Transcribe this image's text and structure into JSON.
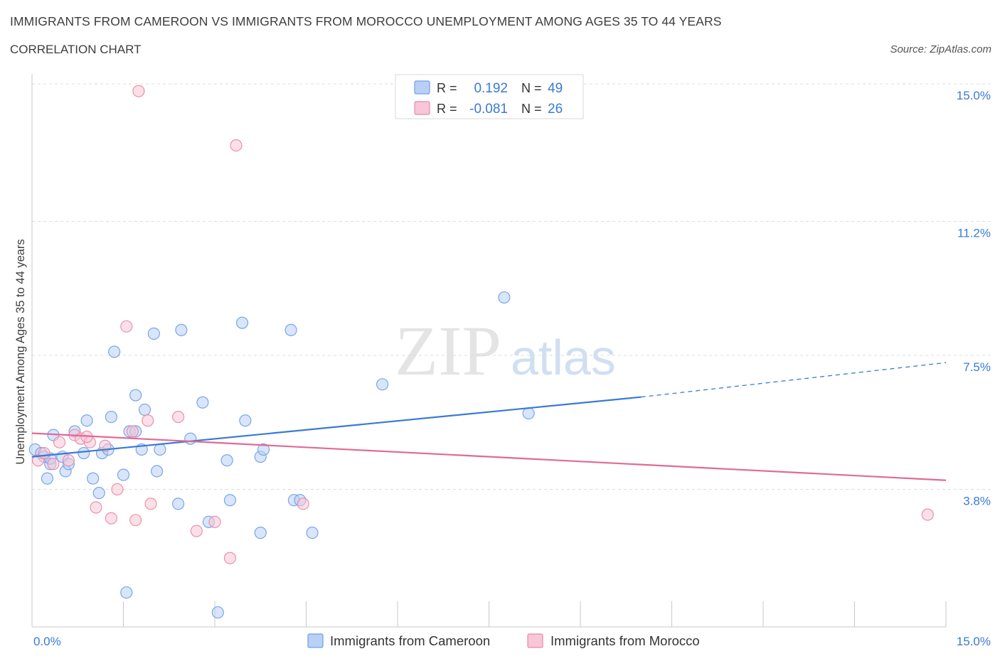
{
  "chart_data": {
    "type": "scatter",
    "title": "IMMIGRANTS FROM CAMEROON VS IMMIGRANTS FROM MOROCCO UNEMPLOYMENT AMONG AGES 35 TO 44 YEARS",
    "subtitle": "CORRELATION CHART",
    "source": "Source: ZipAtlas.com",
    "watermark": {
      "zip": "ZIP",
      "atlas": "atlas"
    },
    "ylabel": "Unemployment Among Ages 35 to 44 years",
    "xlim": [
      0,
      15
    ],
    "ylim": [
      0,
      15
    ],
    "x_tick_labels": [
      {
        "value": 0,
        "label": "0.0%"
      },
      {
        "value": 15,
        "label": "15.0%"
      }
    ],
    "y_tick_labels": [
      {
        "value": 15,
        "label": "15.0%"
      },
      {
        "value": 11.2,
        "label": "11.2%"
      },
      {
        "value": 7.5,
        "label": "7.5%"
      },
      {
        "value": 3.8,
        "label": "3.8%"
      }
    ],
    "legend_stats": [
      {
        "r_label": "R =",
        "r_value": "0.192",
        "n_label": "N =",
        "n_value": "49",
        "color": "#6fa0e6",
        "fill": "#b8d0f5"
      },
      {
        "r_label": "R =",
        "r_value": "-0.081",
        "n_label": "N =",
        "n_value": "26",
        "color": "#e88aa8",
        "fill": "#f8c6d6"
      }
    ],
    "series": [
      {
        "name": "Immigrants from Cameroon",
        "color": "#6fa0e6",
        "fill": "#b8d0f5",
        "trend": {
          "x0": 0,
          "y0": 4.7,
          "x1": 10.0,
          "y1": 6.35,
          "dash_x1": 15.0,
          "dash_y1": 7.3,
          "line_color": "#3a7ad5"
        },
        "points": [
          [
            0.05,
            4.9
          ],
          [
            0.15,
            4.8
          ],
          [
            0.2,
            4.7
          ],
          [
            0.25,
            4.1
          ],
          [
            0.3,
            4.5
          ],
          [
            0.35,
            5.3
          ],
          [
            0.5,
            4.7
          ],
          [
            0.55,
            4.3
          ],
          [
            0.6,
            4.5
          ],
          [
            0.7,
            5.4
          ],
          [
            0.85,
            4.8
          ],
          [
            0.9,
            5.7
          ],
          [
            1.0,
            4.1
          ],
          [
            1.1,
            3.7
          ],
          [
            1.15,
            4.8
          ],
          [
            1.25,
            4.9
          ],
          [
            1.3,
            5.8
          ],
          [
            1.35,
            7.6
          ],
          [
            1.5,
            4.2
          ],
          [
            1.6,
            5.4
          ],
          [
            1.7,
            5.4
          ],
          [
            1.7,
            6.4
          ],
          [
            1.8,
            4.9
          ],
          [
            1.85,
            6.0
          ],
          [
            2.0,
            8.1
          ],
          [
            2.1,
            4.9
          ],
          [
            2.05,
            4.3
          ],
          [
            2.4,
            3.4
          ],
          [
            2.45,
            8.2
          ],
          [
            2.6,
            5.2
          ],
          [
            2.8,
            6.2
          ],
          [
            2.9,
            2.9
          ],
          [
            3.2,
            4.6
          ],
          [
            3.25,
            3.5
          ],
          [
            3.45,
            8.4
          ],
          [
            3.5,
            5.7
          ],
          [
            3.75,
            4.7
          ],
          [
            3.8,
            4.9
          ],
          [
            3.75,
            2.6
          ],
          [
            4.25,
            8.2
          ],
          [
            4.3,
            3.5
          ],
          [
            4.4,
            3.5
          ],
          [
            4.6,
            2.6
          ],
          [
            5.75,
            6.7
          ],
          [
            7.75,
            9.1
          ],
          [
            8.15,
            5.9
          ],
          [
            1.55,
            0.95
          ],
          [
            3.05,
            0.4
          ],
          [
            0.3,
            4.65
          ]
        ]
      },
      {
        "name": "Immigrants from Morocco",
        "color": "#e88aa8",
        "fill": "#f8c6d6",
        "trend": {
          "x0": 0,
          "y0": 5.35,
          "x1": 15.0,
          "y1": 4.05,
          "line_color": "#e06a96"
        },
        "points": [
          [
            0.1,
            4.6
          ],
          [
            0.2,
            4.8
          ],
          [
            0.35,
            4.5
          ],
          [
            0.45,
            5.1
          ],
          [
            0.6,
            4.6
          ],
          [
            0.7,
            5.3
          ],
          [
            0.8,
            5.2
          ],
          [
            0.95,
            5.1
          ],
          [
            1.05,
            3.3
          ],
          [
            1.2,
            5.0
          ],
          [
            1.3,
            3.0
          ],
          [
            1.4,
            3.8
          ],
          [
            1.55,
            8.3
          ],
          [
            1.65,
            5.4
          ],
          [
            1.7,
            2.95
          ],
          [
            1.75,
            14.8
          ],
          [
            1.9,
            5.7
          ],
          [
            1.95,
            3.4
          ],
          [
            2.4,
            5.8
          ],
          [
            2.7,
            2.65
          ],
          [
            3.0,
            2.9
          ],
          [
            3.25,
            1.9
          ],
          [
            3.35,
            13.3
          ],
          [
            4.45,
            3.4
          ],
          [
            14.7,
            3.1
          ],
          [
            0.9,
            5.25
          ]
        ]
      }
    ]
  }
}
